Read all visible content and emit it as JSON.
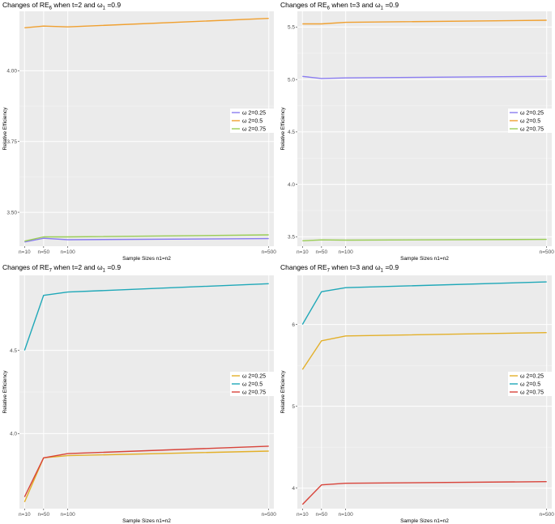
{
  "chart_data": [
    {
      "type": "line",
      "title_main": "Changes of RE",
      "title_sub": "6",
      "title_rest": " when t=2 and ω",
      "title_sub2": "1",
      "title_end": " =0.9",
      "xlabel": "Sample Sizes n1=n2",
      "ylabel": "Relative Efficiency",
      "x": [
        10,
        50,
        100,
        500
      ],
      "x_tick_labels": [
        "n=10",
        "n=50",
        "n=100",
        "n=500"
      ],
      "y_ticks": [
        3.5,
        3.75,
        4.0
      ],
      "y_tick_labels": [
        "3.50",
        "3.75",
        "4.00"
      ],
      "ylim": [
        3.38,
        4.21
      ],
      "grid": true,
      "legend_position": "right",
      "series": [
        {
          "name": "ω 2=0.25",
          "color": "#8A7CF0",
          "values": [
            3.395,
            3.408,
            3.403,
            3.407
          ]
        },
        {
          "name": "ω 2=0.5",
          "color": "#F0A030",
          "values": [
            4.152,
            4.158,
            4.155,
            4.185
          ]
        },
        {
          "name": "ω 2=0.75",
          "color": "#9ACD55",
          "values": [
            3.398,
            3.413,
            3.413,
            3.42
          ]
        }
      ]
    },
    {
      "type": "line",
      "title_main": "Changes of RE",
      "title_sub": "6",
      "title_rest": " when t=3 and ω",
      "title_sub2": "1",
      "title_end": " =0.9",
      "xlabel": "Sample Sizes n1=n2",
      "ylabel": "Relative Efficiency",
      "x": [
        10,
        50,
        100,
        500
      ],
      "x_tick_labels": [
        "n=10",
        "n=50",
        "n=100",
        "n=500"
      ],
      "y_ticks": [
        3.5,
        4.0,
        4.5,
        5.0,
        5.5
      ],
      "y_tick_labels": [
        "3.5",
        "4.0",
        "4.5",
        "5.0",
        "5.5"
      ],
      "ylim": [
        3.41,
        5.65
      ],
      "grid": true,
      "legend_position": "right",
      "series": [
        {
          "name": "ω 2=0.25",
          "color": "#8A7CF0",
          "values": [
            5.03,
            5.01,
            5.015,
            5.03
          ]
        },
        {
          "name": "ω 2=0.5",
          "color": "#F0A030",
          "values": [
            5.53,
            5.53,
            5.545,
            5.565
          ]
        },
        {
          "name": "ω 2=0.75",
          "color": "#9ACD55",
          "values": [
            3.462,
            3.47,
            3.468,
            3.475
          ]
        }
      ]
    },
    {
      "type": "line",
      "title_main": "Changes of RE",
      "title_sub": "7",
      "title_rest": " when t=2 and ω",
      "title_sub2": "1",
      "title_end": " =0.9",
      "xlabel": "Sample Sizes n1=n2",
      "ylabel": "Relative Efficiency",
      "x": [
        10,
        50,
        100,
        500
      ],
      "x_tick_labels": [
        "n=10",
        "n=50",
        "n=100",
        "n=500"
      ],
      "y_ticks": [
        4.0,
        4.5
      ],
      "y_tick_labels": [
        "4.0",
        "4.5"
      ],
      "ylim": [
        3.55,
        4.95
      ],
      "grid": true,
      "legend_position": "right",
      "series": [
        {
          "name": "ω 2=0.25",
          "color": "#E3B02A",
          "values": [
            3.59,
            3.855,
            3.868,
            3.895
          ]
        },
        {
          "name": "ω 2=0.5",
          "color": "#1FA8B8",
          "values": [
            4.5,
            4.83,
            4.85,
            4.9
          ]
        },
        {
          "name": "ω 2=0.75",
          "color": "#D8433A",
          "values": [
            3.62,
            3.855,
            3.88,
            3.925
          ]
        }
      ]
    },
    {
      "type": "line",
      "title_main": "Changes of RE",
      "title_sub": "7",
      "title_rest": " when t=3 and ω",
      "title_sub2": "1",
      "title_end": " =0.9",
      "xlabel": "Sample Sizes n1=n2",
      "ylabel": "Relative Efficiency",
      "x": [
        10,
        50,
        100,
        500
      ],
      "x_tick_labels": [
        "n=10",
        "n=50",
        "n=100",
        "n=500"
      ],
      "y_ticks": [
        4,
        5,
        6
      ],
      "y_tick_labels": [
        "4",
        "5",
        "6"
      ],
      "ylim": [
        3.75,
        6.6
      ],
      "grid": true,
      "legend_position": "right",
      "series": [
        {
          "name": "ω 2=0.25",
          "color": "#E3B02A",
          "values": [
            5.45,
            5.8,
            5.86,
            5.9
          ]
        },
        {
          "name": "ω 2=0.5",
          "color": "#1FA8B8",
          "values": [
            6.0,
            6.4,
            6.45,
            6.52
          ]
        },
        {
          "name": "ω 2=0.75",
          "color": "#D8433A",
          "values": [
            3.8,
            4.04,
            4.06,
            4.08
          ]
        }
      ]
    }
  ]
}
